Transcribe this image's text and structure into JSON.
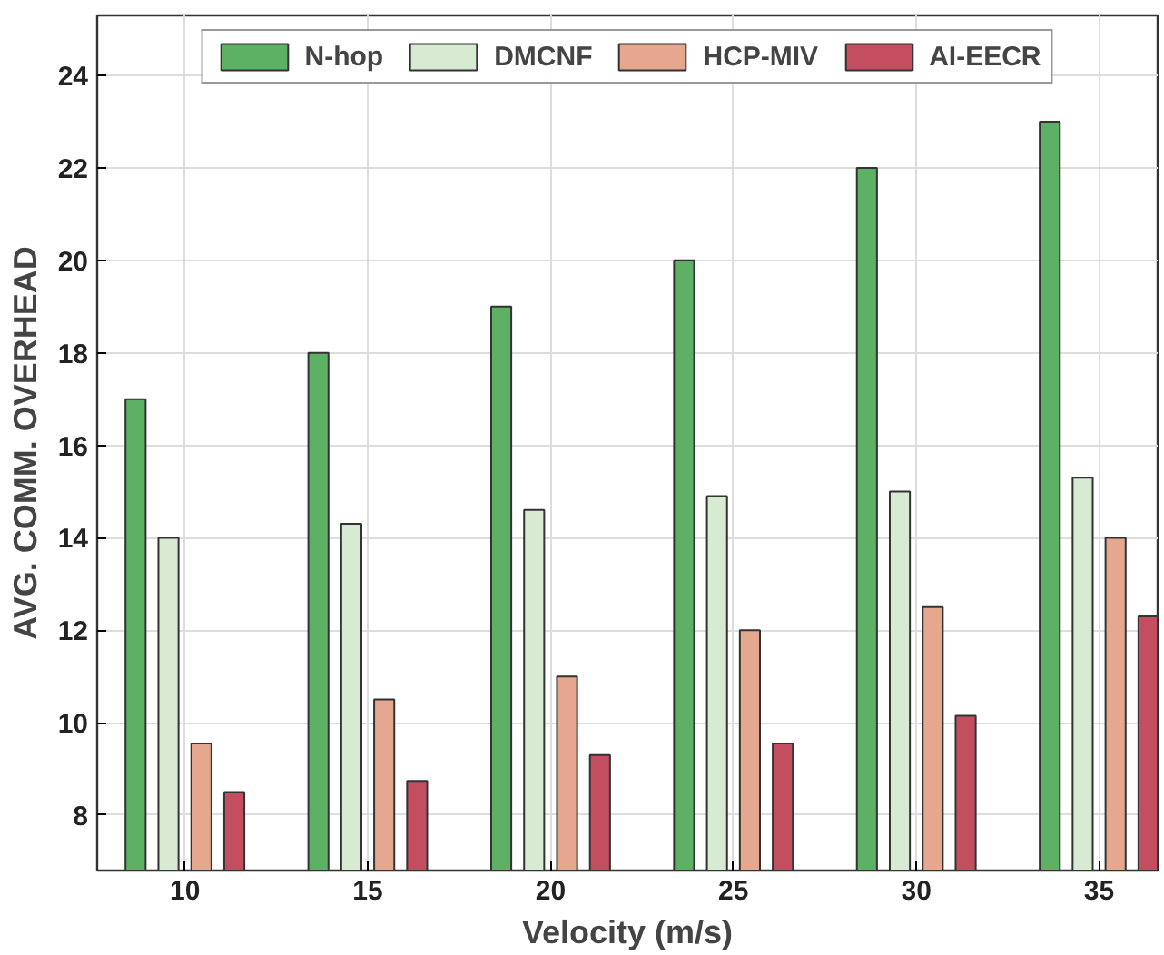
{
  "chart_data": {
    "type": "bar",
    "xlabel": "Velocity (m/s)",
    "ylabel": "AVG. COMM. OVERHEAD",
    "categories": [
      "10",
      "15",
      "20",
      "25",
      "30",
      "35"
    ],
    "series": [
      {
        "name": "N-hop",
        "color": "#5cb165",
        "values": [
          17,
          18,
          19,
          20,
          22,
          23
        ]
      },
      {
        "name": "DMCNF",
        "color": "#d7ebd3",
        "values": [
          14,
          14.3,
          14.6,
          14.9,
          15,
          15.3
        ]
      },
      {
        "name": "HCP-MIV",
        "color": "#e5a88e",
        "values": [
          9.55,
          10.5,
          11,
          12,
          12.5,
          14
        ]
      },
      {
        "name": "AI-EECR",
        "color": "#c24e5f",
        "values": [
          8.5,
          8.74,
          9.3,
          9.55,
          10.15,
          12.3
        ]
      }
    ],
    "ylim": [
      6.8,
      25.3
    ],
    "yticks": [
      8,
      10,
      12,
      14,
      16,
      18,
      20,
      22,
      24
    ],
    "grid": true,
    "legend": "top"
  }
}
